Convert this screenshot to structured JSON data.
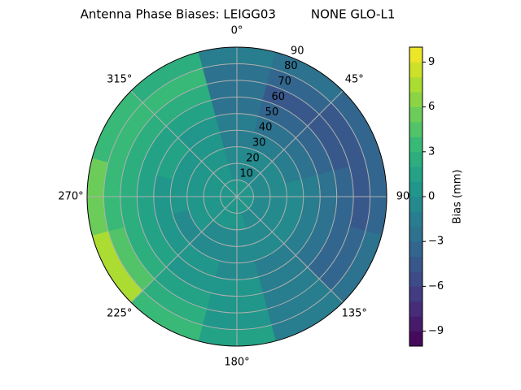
{
  "chart_data": {
    "type": "polar_contour",
    "title": "Antenna Phase Biases: LEIGG03         NONE GLO-L1",
    "theta_zero": "N",
    "theta_direction": "clockwise",
    "grid": true,
    "colormap": "viridis",
    "theta": [
      0,
      30,
      60,
      90,
      120,
      150,
      180,
      210,
      240,
      270,
      300,
      330
    ],
    "r": [
      5,
      15,
      25,
      35,
      45,
      55,
      65,
      75,
      85
    ],
    "values": [
      [
        0,
        -1,
        -1,
        -2,
        -2,
        -3,
        -3,
        -3,
        -2
      ],
      [
        0,
        -1,
        -1,
        -2,
        -3,
        -4,
        -5,
        -4,
        -3
      ],
      [
        0,
        -1,
        -1,
        -2,
        -3,
        -4,
        -5,
        -5,
        -4
      ],
      [
        0,
        -1,
        -1,
        -1,
        -2,
        -3,
        -4,
        -5,
        -4
      ],
      [
        0,
        -1,
        -1,
        -1,
        -2,
        -3,
        -4,
        -4,
        -3
      ],
      [
        0,
        -1,
        -1,
        -1,
        -2,
        -2,
        -2,
        -2,
        -2
      ],
      [
        0,
        0,
        -1,
        -1,
        -1,
        0,
        0,
        0,
        1
      ],
      [
        0,
        0,
        -1,
        -1,
        0,
        0,
        1,
        2,
        3
      ],
      [
        0,
        0,
        0,
        -1,
        0,
        1,
        2,
        4,
        7
      ],
      [
        0,
        0,
        0,
        0,
        0,
        1,
        2,
        3,
        5
      ],
      [
        0,
        0,
        0,
        0,
        1,
        1,
        2,
        3,
        3
      ],
      [
        0,
        0,
        0,
        0,
        0,
        1,
        2,
        3,
        2
      ]
    ],
    "rlim": [
      0,
      90
    ],
    "rticks": [
      10,
      20,
      30,
      40,
      50,
      60,
      70,
      80,
      90
    ],
    "thetaticks": [
      {
        "value": 0,
        "label": "0°"
      },
      {
        "value": 45,
        "label": "45°"
      },
      90,
      {
        "value": 135,
        "label": "135°"
      },
      {
        "value": 180,
        "label": "180°"
      },
      {
        "value": 225,
        "label": "225°"
      },
      {
        "value": 270,
        "label": "270°"
      },
      {
        "value": 315,
        "label": "315°"
      }
    ],
    "colorbar": {
      "label": "Bias (mm)",
      "clim": [
        -10,
        10
      ],
      "levels": [
        -10,
        -9,
        -8,
        -7,
        -6,
        -5,
        -4,
        -3,
        -2,
        -1,
        0,
        1,
        2,
        3,
        4,
        5,
        6,
        7,
        8,
        9,
        10
      ],
      "ticks": [
        {
          "value": -9,
          "label": "−9"
        },
        {
          "value": -6,
          "label": "−6"
        },
        {
          "value": -3,
          "label": "−3"
        },
        0,
        3,
        6,
        9
      ]
    }
  }
}
